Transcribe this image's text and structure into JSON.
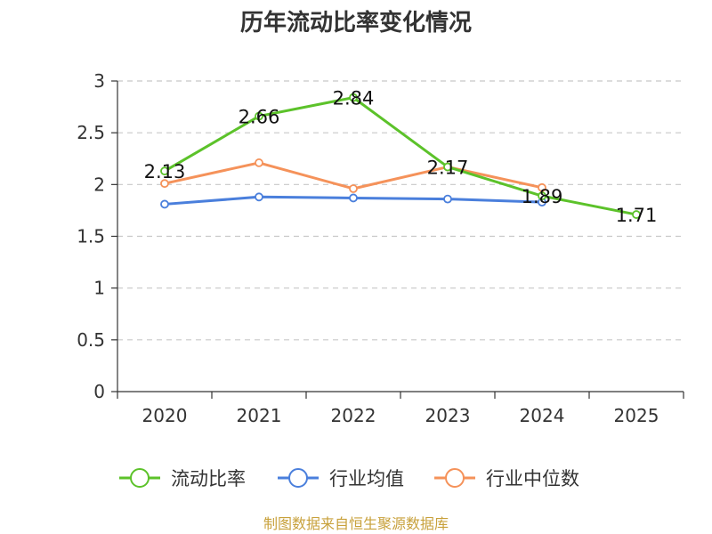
{
  "chart_data": {
    "type": "line",
    "title": "历年流动比率变化情况",
    "categories": [
      "2020",
      "2021",
      "2022",
      "2023",
      "2024",
      "2025"
    ],
    "ylim": [
      0,
      3
    ],
    "yticks": [
      "0",
      "0.5",
      "1",
      "1.5",
      "2",
      "2.5",
      "3"
    ],
    "ytick_values": [
      0,
      0.5,
      1,
      1.5,
      2,
      2.5,
      3
    ],
    "grid": true,
    "legend_position": "bottom",
    "series": [
      {
        "name": "流动比率",
        "color": "#5cc22a",
        "values": [
          2.13,
          2.66,
          2.84,
          2.17,
          1.89,
          1.71
        ],
        "labels": [
          "2.13",
          "2.66",
          "2.84",
          "2.17",
          "1.89",
          "1.71"
        ]
      },
      {
        "name": "行业均值",
        "color": "#4a7fdc",
        "values": [
          1.81,
          1.88,
          1.87,
          1.86,
          1.83,
          null
        ]
      },
      {
        "name": "行业中位数",
        "color": "#f5925a",
        "values": [
          2.01,
          2.21,
          1.96,
          2.17,
          1.97,
          null
        ]
      }
    ],
    "source": "制图数据来自恒生聚源数据库"
  }
}
